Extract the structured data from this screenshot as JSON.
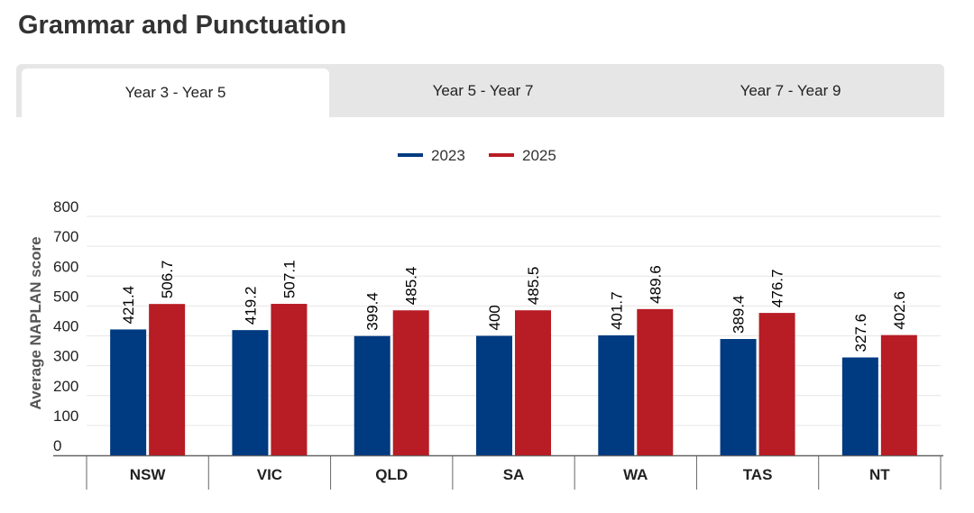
{
  "title": "Grammar and Punctuation",
  "tabs": [
    {
      "label": "Year 3 - Year 5",
      "active": true
    },
    {
      "label": "Year 5 - Year 7",
      "active": false
    },
    {
      "label": "Year 7 - Year 9",
      "active": false
    }
  ],
  "colors": {
    "series_2023": "#003a80",
    "series_2025": "#b81c24"
  },
  "chart_data": {
    "type": "bar",
    "title": "",
    "xlabel": "",
    "ylabel": "Average NAPLAN score",
    "ylim": [
      0,
      800
    ],
    "yticks": [
      0,
      100,
      200,
      300,
      400,
      500,
      600,
      700,
      800
    ],
    "categories": [
      "NSW",
      "VIC",
      "QLD",
      "SA",
      "WA",
      "TAS",
      "NT"
    ],
    "series": [
      {
        "name": "2023",
        "values": [
          421.4,
          419.2,
          399.4,
          400,
          401.7,
          389.4,
          327.6
        ]
      },
      {
        "name": "2025",
        "values": [
          506.7,
          507.1,
          485.4,
          485.5,
          489.6,
          476.7,
          402.6
        ]
      }
    ],
    "legend": "top-center",
    "grid": true
  }
}
